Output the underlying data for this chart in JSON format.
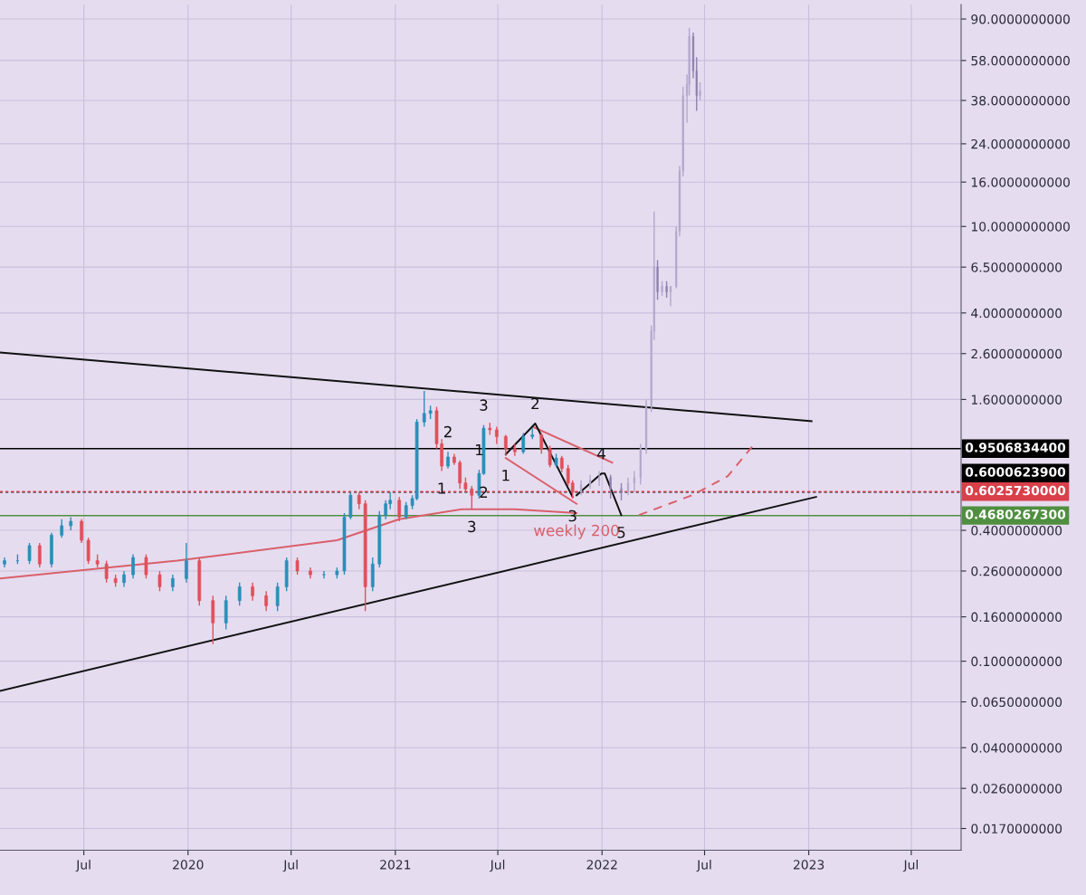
{
  "chart_data": {
    "type": "candlestick",
    "log": true,
    "grid": true,
    "legend": false,
    "xlim": [
      "2019-02-03",
      "2023-09-27"
    ],
    "ylim": [
      0.0135,
      105
    ],
    "xticks": [
      {
        "value": "2019-07-01",
        "label": "Jul"
      },
      {
        "value": "2020-01-01",
        "label": "2020"
      },
      {
        "value": "2020-07-01",
        "label": "Jul"
      },
      {
        "value": "2021-01-01",
        "label": "2021"
      },
      {
        "value": "2021-07-01",
        "label": "Jul"
      },
      {
        "value": "2022-01-01",
        "label": "2022"
      },
      {
        "value": "2022-07-01",
        "label": "Jul"
      },
      {
        "value": "2023-01-01",
        "label": "2023"
      },
      {
        "value": "2023-07-01",
        "label": "Jul"
      }
    ],
    "yticks": [
      {
        "value": 90,
        "label": "90.0000000000"
      },
      {
        "value": 58,
        "label": "58.0000000000"
      },
      {
        "value": 38,
        "label": "38.0000000000"
      },
      {
        "value": 24,
        "label": "24.0000000000"
      },
      {
        "value": 16,
        "label": "16.0000000000"
      },
      {
        "value": 10,
        "label": "10.0000000000"
      },
      {
        "value": 6.5,
        "label": "6.5000000000"
      },
      {
        "value": 4,
        "label": "4.0000000000"
      },
      {
        "value": 2.6,
        "label": "2.6000000000"
      },
      {
        "value": 1.6,
        "label": "1.6000000000"
      },
      {
        "value": 0.4,
        "label": "0.4000000000"
      },
      {
        "value": 0.26,
        "label": "0.2600000000"
      },
      {
        "value": 0.16,
        "label": "0.1600000000"
      },
      {
        "value": 0.1,
        "label": "0.1000000000"
      },
      {
        "value": 0.065,
        "label": "0.0650000000"
      },
      {
        "value": 0.04,
        "label": "0.0400000000"
      },
      {
        "value": 0.026,
        "label": "0.0260000000"
      },
      {
        "value": 0.017,
        "label": "0.0170000000"
      }
    ],
    "series": [
      {
        "colors": [
          "#2a8fb8",
          "#2a8fb8",
          "#2a8fb8",
          "#e0505a",
          "#2a8fb8",
          "#2a8fb8",
          "#2a8fb8",
          "#e0505a",
          "#e0505a",
          "#e0505a",
          "#e0505a",
          "#e0505a",
          "#2a8fb8",
          "#2a8fb8",
          "#e0505a",
          "#e0505a",
          "#2a8fb8",
          "#2a8fb8",
          "#e0505a",
          "#e0505a",
          "#2a8fb8",
          "#2a8fb8",
          "#e0505a",
          "#e0505a",
          "#2a8fb8",
          "#2a8fb8",
          "#e0505a",
          "#e0505a",
          "#2a8fb8",
          "#2a8fb8",
          "#2a8fb8",
          "#2a8fb8",
          "#e0505a",
          "#e0505a",
          "#2a8fb8",
          "#2a8fb8",
          "#2a8fb8",
          "#2a8fb8",
          "#e0505a",
          "#2a8fb8",
          "#2a8fb8",
          "#2a8fb8",
          "#2a8fb8",
          "#2a8fb8",
          "#e0505a",
          "#e0505a",
          "#2a8fb8",
          "#e0505a",
          "#e0505a",
          "#e0505a",
          "#e0505a",
          "#2a8fb8",
          "#2a8fb8",
          "#e0505a",
          "#e0505a",
          "#e0505a",
          "#e0505a",
          "#2a8fb8",
          "#2a8fb8",
          "#e0505a",
          "#e0505a",
          "#2a8fb8",
          "#e0505a",
          "#e0505a",
          "#e0505a"
        ],
        "x": [
          "2019-02-11",
          "2019-03-06",
          "2019-03-27",
          "2019-04-14",
          "2019-05-05",
          "2019-05-23",
          "2019-06-08",
          "2019-06-27",
          "2019-07-09",
          "2019-07-25",
          "2019-08-10",
          "2019-08-26",
          "2019-09-10",
          "2019-09-26",
          "2019-10-19",
          "2019-11-12",
          "2019-12-05",
          "2019-12-29",
          "2020-01-21",
          "2020-02-14",
          "2020-03-08",
          "2020-04-01",
          "2020-04-24",
          "2020-05-18",
          "2020-06-07",
          "2020-06-23",
          "2020-07-12",
          "2020-08-04",
          "2020-08-28",
          "2020-09-20",
          "2020-10-03",
          "2020-10-14",
          "2020-10-29",
          "2020-11-09",
          "2020-11-22",
          "2020-12-04",
          "2020-12-15",
          "2020-12-23",
          "2021-01-08",
          "2021-01-20",
          "2021-01-31",
          "2021-02-08",
          "2021-02-21",
          "2021-03-04",
          "2021-03-15",
          "2021-03-24",
          "2021-04-04",
          "2021-04-15",
          "2021-04-25",
          "2021-05-05",
          "2021-05-16",
          "2021-05-29",
          "2021-06-06",
          "2021-06-17",
          "2021-06-29",
          "2021-07-15",
          "2021-07-31",
          "2021-08-15",
          "2021-08-31",
          "2021-09-16",
          "2021-10-01",
          "2021-10-12",
          "2021-10-22",
          "2021-11-02",
          "2021-11-10"
        ],
        "ohlc": [
          [
            0.28,
            0.3,
            0.27,
            0.29
          ],
          [
            0.29,
            0.31,
            0.28,
            0.29
          ],
          [
            0.29,
            0.35,
            0.28,
            0.34
          ],
          [
            0.34,
            0.35,
            0.27,
            0.28
          ],
          [
            0.28,
            0.39,
            0.27,
            0.38
          ],
          [
            0.38,
            0.45,
            0.37,
            0.42
          ],
          [
            0.42,
            0.46,
            0.4,
            0.44
          ],
          [
            0.44,
            0.45,
            0.35,
            0.36
          ],
          [
            0.36,
            0.37,
            0.28,
            0.29
          ],
          [
            0.29,
            0.31,
            0.27,
            0.28
          ],
          [
            0.28,
            0.29,
            0.23,
            0.24
          ],
          [
            0.24,
            0.25,
            0.22,
            0.23
          ],
          [
            0.23,
            0.26,
            0.22,
            0.25
          ],
          [
            0.25,
            0.31,
            0.24,
            0.3
          ],
          [
            0.3,
            0.31,
            0.24,
            0.25
          ],
          [
            0.25,
            0.26,
            0.21,
            0.22
          ],
          [
            0.22,
            0.25,
            0.21,
            0.24
          ],
          [
            0.24,
            0.35,
            0.23,
            0.29
          ],
          [
            0.29,
            0.3,
            0.18,
            0.19
          ],
          [
            0.19,
            0.2,
            0.12,
            0.15
          ],
          [
            0.15,
            0.2,
            0.14,
            0.19
          ],
          [
            0.19,
            0.23,
            0.18,
            0.22
          ],
          [
            0.22,
            0.23,
            0.19,
            0.2
          ],
          [
            0.2,
            0.21,
            0.17,
            0.18
          ],
          [
            0.18,
            0.23,
            0.17,
            0.22
          ],
          [
            0.22,
            0.3,
            0.21,
            0.29
          ],
          [
            0.29,
            0.3,
            0.25,
            0.26
          ],
          [
            0.26,
            0.27,
            0.24,
            0.25
          ],
          [
            0.25,
            0.26,
            0.24,
            0.25
          ],
          [
            0.25,
            0.27,
            0.24,
            0.26
          ],
          [
            0.26,
            0.48,
            0.25,
            0.46
          ],
          [
            0.46,
            0.6,
            0.45,
            0.58
          ],
          [
            0.58,
            0.6,
            0.5,
            0.53
          ],
          [
            0.53,
            0.55,
            0.17,
            0.22
          ],
          [
            0.22,
            0.3,
            0.21,
            0.28
          ],
          [
            0.28,
            0.49,
            0.27,
            0.47
          ],
          [
            0.47,
            0.55,
            0.45,
            0.53
          ],
          [
            0.53,
            0.6,
            0.5,
            0.55
          ],
          [
            0.55,
            0.57,
            0.44,
            0.46
          ],
          [
            0.46,
            0.54,
            0.45,
            0.52
          ],
          [
            0.52,
            0.58,
            0.5,
            0.56
          ],
          [
            0.56,
            1.3,
            0.55,
            1.26
          ],
          [
            1.26,
            1.75,
            1.2,
            1.38
          ],
          [
            1.38,
            1.5,
            1.3,
            1.42
          ],
          [
            1.42,
            1.48,
            0.95,
            1.0
          ],
          [
            1.0,
            1.05,
            0.75,
            0.79
          ],
          [
            0.79,
            0.92,
            0.77,
            0.87
          ],
          [
            0.87,
            0.9,
            0.8,
            0.82
          ],
          [
            0.82,
            0.84,
            0.62,
            0.66
          ],
          [
            0.66,
            0.7,
            0.6,
            0.62
          ],
          [
            0.62,
            0.64,
            0.5,
            0.58
          ],
          [
            0.58,
            0.76,
            0.56,
            0.73
          ],
          [
            0.73,
            1.22,
            0.72,
            1.18
          ],
          [
            1.18,
            1.25,
            1.1,
            1.16
          ],
          [
            1.16,
            1.2,
            1.0,
            1.08
          ],
          [
            1.08,
            1.1,
            0.88,
            0.95
          ],
          [
            0.95,
            1.0,
            0.88,
            0.92
          ],
          [
            0.92,
            1.12,
            0.9,
            1.08
          ],
          [
            1.08,
            1.18,
            1.05,
            1.1
          ],
          [
            1.1,
            1.12,
            0.9,
            0.95
          ],
          [
            0.95,
            0.98,
            0.78,
            0.8
          ],
          [
            0.8,
            0.9,
            0.78,
            0.86
          ],
          [
            0.86,
            0.88,
            0.74,
            0.77
          ],
          [
            0.77,
            0.8,
            0.64,
            0.66
          ],
          [
            0.66,
            0.68,
            0.56,
            0.6
          ]
        ]
      },
      {
        "colors": [
          "#b3a8cc",
          "#b3a8cc",
          "#b3a8cc",
          "#8e82ad",
          "#8e82ad",
          "#b3a8cc",
          "#b3a8cc",
          "#b3a8cc",
          "#b3a8cc",
          "#b3a8cc",
          "#b3a8cc",
          "#8e82ad",
          "#b3a8cc",
          "#8e82ad",
          "#b3a8cc",
          "#b3a8cc",
          "#b3a8cc",
          "#b3a8cc",
          "#b3a8cc",
          "#b3a8cc",
          "#8e82ad",
          "#8e82ad",
          "#b3a8cc"
        ],
        "x": [
          "2021-11-25",
          "2021-12-11",
          "2021-12-27",
          "2022-01-16",
          "2022-02-04",
          "2022-02-16",
          "2022-02-27",
          "2022-03-10",
          "2022-03-20",
          "2022-03-29",
          "2022-04-03",
          "2022-04-09",
          "2022-04-17",
          "2022-04-25",
          "2022-05-02",
          "2022-05-12",
          "2022-05-18",
          "2022-05-24",
          "2022-05-31",
          "2022-06-04",
          "2022-06-11",
          "2022-06-17",
          "2022-06-23"
        ],
        "ohlc": [
          [
            0.6,
            0.68,
            0.58,
            0.65
          ],
          [
            0.65,
            0.72,
            0.62,
            0.68
          ],
          [
            0.68,
            0.75,
            0.64,
            0.7
          ],
          [
            0.7,
            0.72,
            0.56,
            0.62
          ],
          [
            0.62,
            0.66,
            0.55,
            0.6
          ],
          [
            0.6,
            0.7,
            0.58,
            0.66
          ],
          [
            0.66,
            0.75,
            0.6,
            0.7
          ],
          [
            0.7,
            1.0,
            0.65,
            0.95
          ],
          [
            0.95,
            1.6,
            0.9,
            1.5
          ],
          [
            1.5,
            3.5,
            1.4,
            3.3
          ],
          [
            3.3,
            11.7,
            3.0,
            6.5
          ],
          [
            6.5,
            7.0,
            4.6,
            5.0
          ],
          [
            5.0,
            5.6,
            4.8,
            5.3
          ],
          [
            5.3,
            5.6,
            4.7,
            5.0
          ],
          [
            5.0,
            5.3,
            4.3,
            5.3
          ],
          [
            5.3,
            10.0,
            5.2,
            9.5
          ],
          [
            9.5,
            19.0,
            9.0,
            18.0
          ],
          [
            18.0,
            44.0,
            17.0,
            40.0
          ],
          [
            40.0,
            50.0,
            30.0,
            45.0
          ],
          [
            45.0,
            82.0,
            40.0,
            75.0
          ],
          [
            75.0,
            78.0,
            48.0,
            52.0
          ],
          [
            52.0,
            60.0,
            34.0,
            40.0
          ],
          [
            40.0,
            46.0,
            38.0,
            42.0
          ]
        ]
      },
      {
        "type": "line",
        "color": "#d9606a",
        "x": [
          "2019-02-03",
          "2019-12-13",
          "2020-09-20",
          "2021-01-08",
          "2021-04-28",
          "2021-07-31",
          "2021-11-17"
        ],
        "values": [
          0.24,
          0.29,
          0.36,
          0.45,
          0.5,
          0.5,
          0.48
        ]
      },
      {
        "type": "line",
        "color": "#111111",
        "x": [
          "2019-02-03",
          "2023-01-06"
        ],
        "values": [
          2.63,
          1.27
        ]
      },
      {
        "type": "line",
        "color": "#111111",
        "x": [
          "2019-02-03",
          "2023-01-14"
        ],
        "values": [
          0.073,
          0.57
        ]
      },
      {
        "type": "line",
        "color": "#d9606a",
        "x": [
          "2021-08-31",
          "2022-01-19"
        ],
        "values": [
          1.2,
          0.82
        ]
      },
      {
        "type": "line",
        "color": "#d9606a",
        "x": [
          "2021-07-15",
          "2021-11-17"
        ],
        "values": [
          0.86,
          0.53
        ]
      },
      {
        "type": "line",
        "color": "#111111",
        "x": [
          "2021-07-15",
          "2021-09-05",
          "2021-11-10"
        ],
        "values": [
          0.895,
          1.24,
          0.57
        ]
      },
      {
        "type": "line",
        "color": "#111111",
        "x": [
          "2021-11-17",
          "2021-12-31",
          "2022-01-06",
          "2022-02-04"
        ],
        "values": [
          0.58,
          0.73,
          0.73,
          0.47
        ]
      },
      {
        "type": "line",
        "color": "#d9606a",
        "line_style": "dashed",
        "x": [
          "2022-03-07",
          "2022-06-09",
          "2022-08-11",
          "2022-09-27"
        ],
        "values": [
          0.47,
          0.58,
          0.71,
          1.0
        ]
      }
    ],
    "ref_lines": [
      {
        "axis": "y",
        "value": 0.95068344,
        "label": "0.9506834400",
        "color": "#000000",
        "line_style": "solid"
      },
      {
        "axis": "y",
        "value": 0.60006239,
        "label": "0.6000623900",
        "color": "#000000",
        "line_style": "dotted"
      },
      {
        "axis": "y",
        "value": 0.602573,
        "label": "0.6025730000",
        "color": "#d9404a",
        "line_style": "dotted"
      },
      {
        "axis": "y",
        "value": 0.46802673,
        "label": "0.4680267300",
        "color": "#4f8f3f",
        "line_style": "solid"
      }
    ],
    "annotations": [
      {
        "text": "3",
        "x": "2021-06-06",
        "y": 1.22
      },
      {
        "text": "2",
        "x": "2021-04-04",
        "y": 0.92
      },
      {
        "text": "1",
        "x": "2021-03-24",
        "y": 0.75
      },
      {
        "text": "1",
        "x": "2021-05-29",
        "y": 0.76
      },
      {
        "text": "2",
        "x": "2021-06-06",
        "y": 0.72
      },
      {
        "text": "3",
        "x": "2021-05-16",
        "y": 0.5
      },
      {
        "text": "1",
        "x": "2021-07-15",
        "y": 0.86
      },
      {
        "text": "2",
        "x": "2021-09-05",
        "y": 1.24
      },
      {
        "text": "3",
        "x": "2021-11-10",
        "y": 0.56
      },
      {
        "text": "4",
        "x": "2021-12-31",
        "y": 0.73
      },
      {
        "text": "5",
        "x": "2022-02-04",
        "y": 0.47
      },
      {
        "text": "weekly 200",
        "x": "2021-11-17",
        "y": 0.48
      }
    ]
  }
}
